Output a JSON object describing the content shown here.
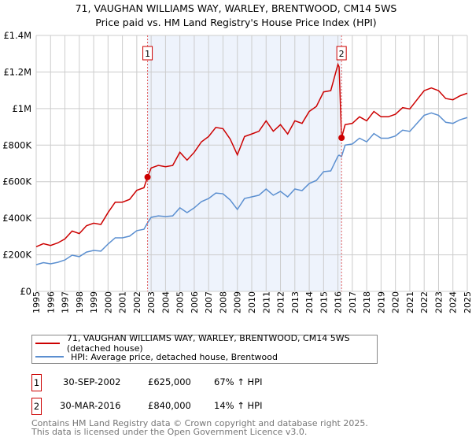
{
  "title_line1": "71, VAUGHAN WILLIAMS WAY, WARLEY, BRENTWOOD, CM14 5WS",
  "title_line2": "Price paid vs. HM Land Registry's House Price Index (HPI)",
  "colors": {
    "property": "#cc0000",
    "hpi": "#5b8fd0",
    "shade": "#eef3fc",
    "grid": "#cccccc"
  },
  "chart_data": {
    "type": "line",
    "xlim": [
      1995,
      2025
    ],
    "ylim": [
      0,
      1400000
    ],
    "yticks": [
      0,
      200000,
      400000,
      600000,
      800000,
      1000000,
      1200000,
      1400000
    ],
    "ytick_labels": [
      "£0",
      "£200K",
      "£400K",
      "£600K",
      "£800K",
      "£1M",
      "£1.2M",
      "£1.4M"
    ],
    "xticks": [
      "1995",
      "1996",
      "1997",
      "1998",
      "1999",
      "2000",
      "2001",
      "2002",
      "2003",
      "2004",
      "2005",
      "2006",
      "2007",
      "2008",
      "2009",
      "2010",
      "2011",
      "2012",
      "2013",
      "2014",
      "2015",
      "2016",
      "2017",
      "2018",
      "2019",
      "2020",
      "2021",
      "2022",
      "2023",
      "2024",
      "2025"
    ],
    "grid": true,
    "x": [
      1995,
      1995.5,
      1996,
      1996.5,
      1997,
      1997.5,
      1998,
      1998.5,
      1999,
      1999.5,
      2000,
      2000.5,
      2001,
      2001.5,
      2002,
      2002.5,
      2002.75,
      2003,
      2003.5,
      2004,
      2004.5,
      2005,
      2005.5,
      2006,
      2006.5,
      2007,
      2007.5,
      2008,
      2008.5,
      2009,
      2009.5,
      2010,
      2010.5,
      2011,
      2011.5,
      2012,
      2012.5,
      2013,
      2013.5,
      2014,
      2014.5,
      2015,
      2015.5,
      2016,
      2016.08,
      2016.25,
      2016.5,
      2017,
      2017.5,
      2018,
      2018.5,
      2019,
      2019.5,
      2020,
      2020.5,
      2021,
      2021.5,
      2022,
      2022.5,
      2023,
      2023.5,
      2024,
      2024.5,
      2025
    ],
    "series": [
      {
        "name": "71, VAUGHAN WILLIAMS WAY, WARLEY, BRENTWOOD, CM14 5WS (detached house)",
        "values": [
          244,
          261,
          251,
          265,
          287,
          330,
          316,
          359,
          373,
          366,
          431,
          488,
          488,
          503,
          553,
          567,
          625,
          675,
          689,
          682,
          689,
          761,
          718,
          761,
          818,
          847,
          897,
          890,
          833,
          747,
          847,
          861,
          876,
          933,
          876,
          912,
          861,
          933,
          919,
          984,
          1012,
          1091,
          1098,
          1242,
          1228,
          840,
          912,
          919,
          955,
          933,
          984,
          955,
          955,
          969,
          1005,
          998,
          1048,
          1098,
          1113,
          1098,
          1055,
          1048,
          1070,
          1084
        ],
        "unit": "£K"
      },
      {
        "name": "HPI: Average price, detached house, Brentwood",
        "values": [
          146,
          157,
          151,
          159,
          172,
          198,
          190,
          215,
          224,
          220,
          259,
          293,
          293,
          302,
          332,
          340,
          375,
          405,
          413,
          409,
          413,
          457,
          431,
          457,
          491,
          508,
          538,
          534,
          500,
          448,
          508,
          517,
          526,
          560,
          526,
          547,
          517,
          560,
          551,
          590,
          607,
          655,
          659,
          740,
          745,
          737,
          800,
          806,
          838,
          818,
          863,
          838,
          838,
          850,
          882,
          875,
          919,
          963,
          976,
          963,
          925,
          919,
          939,
          951
        ],
        "unit": "£K"
      }
    ],
    "shaded_range": [
      2002.75,
      2016.25
    ],
    "sales": [
      {
        "num": "1",
        "x": 2002.75,
        "value": 625,
        "date": "30-SEP-2002",
        "price": "£625,000",
        "hpi": "67% ↑ HPI"
      },
      {
        "num": "2",
        "x": 2016.25,
        "value": 840,
        "date": "30-MAR-2016",
        "price": "£840,000",
        "hpi": "14% ↑ HPI"
      }
    ],
    "legend": [
      "71, VAUGHAN WILLIAMS WAY, WARLEY, BRENTWOOD, CM14 5WS (detached house)",
      "HPI: Average price, detached house, Brentwood"
    ]
  },
  "footer1": "Contains HM Land Registry data © Crown copyright and database right 2025.",
  "footer2": "This data is licensed under the Open Government Licence v3.0."
}
